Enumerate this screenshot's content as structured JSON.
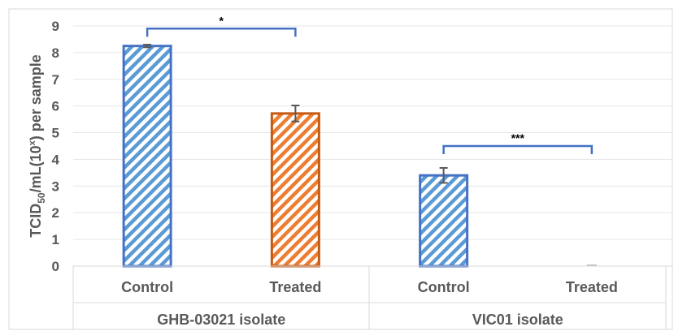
{
  "chart_data": {
    "type": "bar",
    "ylabel": "TCID50/mL(10ˣ) per sample",
    "ylim": [
      0,
      9
    ],
    "yticks": [
      "0",
      "1",
      "2",
      "3",
      "4",
      "5",
      "6",
      "7",
      "8",
      "9"
    ],
    "grid": true,
    "categories": [
      "Control",
      "Treated",
      "Control",
      "Treated"
    ],
    "groups": [
      "GHB-03021 isolate",
      "VIC01 isolate"
    ],
    "values": [
      8.25,
      5.72,
      3.4,
      0
    ],
    "errors": [
      0.05,
      0.3,
      0.28,
      0
    ],
    "bar_colors": [
      "#4472c4",
      "#c55a11",
      "#4472c4",
      "#c55a11"
    ],
    "bar_fill_colors": [
      "#5b9bd5",
      "#ed7d31",
      "#5b9bd5",
      "#ed7d31"
    ],
    "significance": [
      {
        "from": 0,
        "to": 1,
        "label": "*",
        "level": 8.9
      },
      {
        "from": 2,
        "to": 3,
        "label": "***",
        "level": 4.5
      }
    ]
  }
}
